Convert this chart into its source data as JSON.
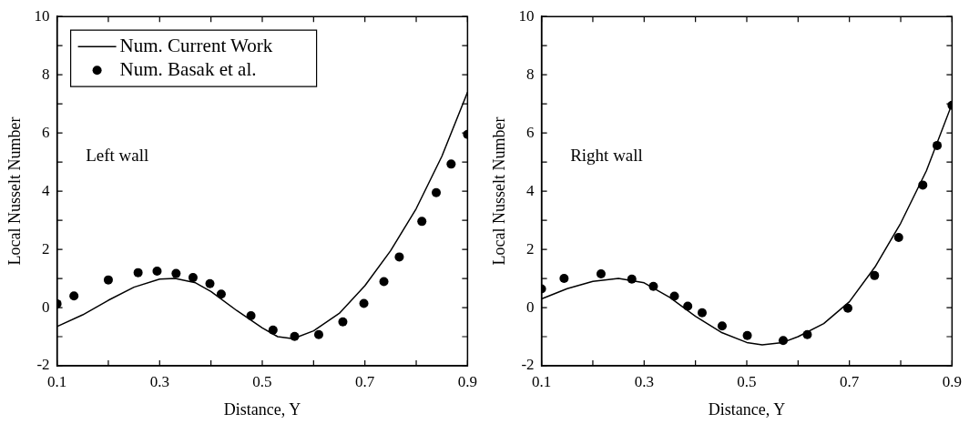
{
  "chart_data": [
    {
      "type": "line",
      "xlabel": "Distance, Y",
      "ylabel": "Local Nusselt Number",
      "annotations": [
        "Left wall"
      ],
      "legend": "top left",
      "grid": false,
      "xlim": [
        0.1,
        0.9
      ],
      "ylim": [
        -2,
        10
      ],
      "xticks": [
        0.1,
        {
          "value": 0.2,
          "label": null
        },
        0.3,
        {
          "value": 0.4,
          "label": null
        },
        0.5,
        {
          "value": 0.6,
          "label": null
        },
        0.7,
        {
          "value": 0.8,
          "label": null
        },
        0.9
      ],
      "yticks": [
        -2,
        {
          "value": -1,
          "label": null
        },
        0,
        {
          "value": 1,
          "label": null
        },
        2,
        {
          "value": 3,
          "label": null
        },
        4,
        {
          "value": 5,
          "label": null
        },
        6,
        {
          "value": 7,
          "label": null
        },
        8,
        {
          "value": 9,
          "label": null
        },
        10
      ],
      "series": [
        {
          "name": "Num. Current Work",
          "type": "line",
          "color": "#000000",
          "marker": "none",
          "line_style": "solid",
          "x": [
            0.1,
            0.15,
            0.2,
            0.25,
            0.3,
            0.33,
            0.37,
            0.4,
            0.45,
            0.5,
            0.53,
            0.56,
            0.6,
            0.65,
            0.7,
            0.75,
            0.8,
            0.85,
            0.9
          ],
          "values": [
            -0.65,
            -0.25,
            0.25,
            0.7,
            0.98,
            1.0,
            0.85,
            0.55,
            -0.1,
            -0.7,
            -1.0,
            -1.07,
            -0.8,
            -0.2,
            0.75,
            1.95,
            3.4,
            5.2,
            7.4
          ]
        },
        {
          "name": "Num. Basak et al.",
          "type": "scatter",
          "color": "#000000",
          "marker": "circle",
          "x": [
            0.1,
            0.133,
            0.2,
            0.258,
            0.295,
            0.332,
            0.365,
            0.398,
            0.42,
            0.478,
            0.521,
            0.563,
            0.61,
            0.657,
            0.698,
            0.737,
            0.767,
            0.811,
            0.839,
            0.868,
            0.9
          ],
          "values": [
            0.13,
            0.4,
            0.95,
            1.2,
            1.25,
            1.17,
            1.03,
            0.82,
            0.46,
            -0.28,
            -0.77,
            -0.99,
            -0.93,
            -0.49,
            0.14,
            0.89,
            1.74,
            2.96,
            3.95,
            4.93,
            5.95
          ]
        }
      ]
    },
    {
      "type": "line",
      "xlabel": "Distance, Y",
      "ylabel": "Local Nusselt Number",
      "annotations": [
        "Right wall"
      ],
      "legend": false,
      "grid": false,
      "xlim": [
        0.1,
        0.9
      ],
      "ylim": [
        -2,
        10
      ],
      "xticks": [
        0.1,
        {
          "value": 0.2,
          "label": null
        },
        0.3,
        {
          "value": 0.4,
          "label": null
        },
        0.5,
        {
          "value": 0.6,
          "label": null
        },
        0.7,
        {
          "value": 0.8,
          "label": null
        },
        0.9
      ],
      "yticks": [
        -2,
        {
          "value": -1,
          "label": null
        },
        0,
        {
          "value": 1,
          "label": null
        },
        2,
        {
          "value": 3,
          "label": null
        },
        4,
        {
          "value": 5,
          "label": null
        },
        6,
        {
          "value": 7,
          "label": null
        },
        8,
        {
          "value": 9,
          "label": null
        },
        10
      ],
      "series": [
        {
          "type": "line",
          "color": "#000000",
          "marker": "none",
          "line_style": "solid",
          "x": [
            0.1,
            0.15,
            0.2,
            0.25,
            0.3,
            0.35,
            0.4,
            0.45,
            0.5,
            0.53,
            0.57,
            0.6,
            0.65,
            0.7,
            0.75,
            0.8,
            0.85,
            0.9
          ],
          "values": [
            0.3,
            0.65,
            0.9,
            1.0,
            0.85,
            0.35,
            -0.3,
            -0.85,
            -1.2,
            -1.28,
            -1.2,
            -1.0,
            -0.55,
            0.2,
            1.4,
            2.9,
            4.7,
            7.0
          ]
        },
        {
          "type": "scatter",
          "color": "#000000",
          "marker": "circle",
          "x": [
            0.1,
            0.144,
            0.216,
            0.276,
            0.318,
            0.359,
            0.385,
            0.413,
            0.452,
            0.501,
            0.571,
            0.618,
            0.697,
            0.749,
            0.796,
            0.843,
            0.871,
            0.9
          ],
          "values": [
            0.64,
            1.0,
            1.16,
            0.98,
            0.73,
            0.39,
            0.05,
            -0.18,
            -0.63,
            -0.96,
            -1.13,
            -0.93,
            -0.02,
            1.1,
            2.41,
            4.21,
            5.57,
            6.95
          ]
        }
      ]
    }
  ]
}
